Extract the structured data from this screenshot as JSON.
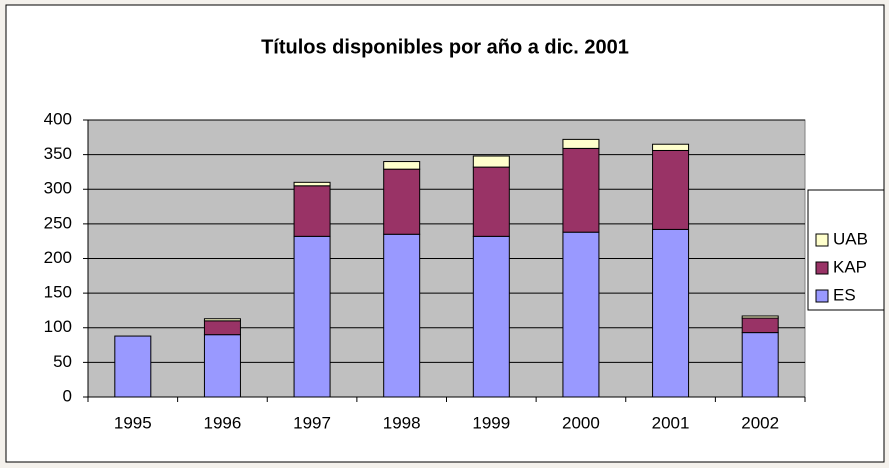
{
  "chart_data": {
    "type": "bar",
    "stacked": true,
    "title": "Títulos disponibles por año a dic. 2001",
    "categories": [
      "1995",
      "1996",
      "1997",
      "1998",
      "1999",
      "2000",
      "2001",
      "2002"
    ],
    "series": [
      {
        "name": "ES",
        "color": "#9999ff",
        "values": [
          88,
          90,
          232,
          235,
          232,
          238,
          242,
          93
        ]
      },
      {
        "name": "KAP",
        "color": "#993366",
        "values": [
          0,
          20,
          73,
          94,
          100,
          121,
          114,
          21
        ]
      },
      {
        "name": "UAB",
        "color": "#ffffcc",
        "values": [
          0,
          3,
          5,
          11,
          16,
          13,
          9,
          3
        ]
      }
    ],
    "ylim": [
      0,
      400
    ],
    "yticks": [
      0,
      50,
      100,
      150,
      200,
      250,
      300,
      350,
      400
    ],
    "grid": true,
    "legend": "right"
  }
}
